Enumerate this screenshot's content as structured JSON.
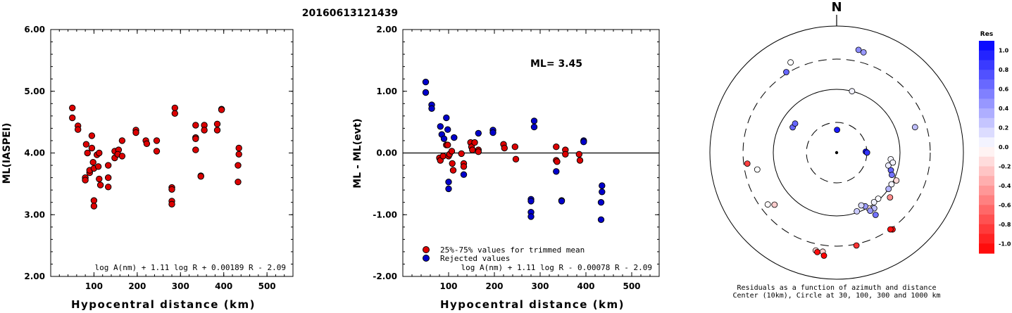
{
  "title": "20160613121439",
  "chart_data": [
    {
      "id": "ml-vs-distance",
      "type": "scatter",
      "xlabel": "Hypocentral distance (km)",
      "ylabel": "ML(IASPEI)",
      "xlim": [
        0,
        560
      ],
      "ylim": [
        2.0,
        6.0
      ],
      "xticks": [
        "100",
        "200",
        "300",
        "400",
        "500"
      ],
      "yticks": [
        "2.00",
        "3.00",
        "4.00",
        "5.00",
        "6.00"
      ],
      "formula": "log A(nm) + 1.11 log R + 0.00189 R - 2.09",
      "point_color": "#dd0000",
      "points": [
        [
          50,
          4.73
        ],
        [
          50,
          4.57
        ],
        [
          63,
          4.44
        ],
        [
          63,
          4.38
        ],
        [
          82,
          4.14
        ],
        [
          85,
          4.0
        ],
        [
          80,
          3.6
        ],
        [
          80,
          3.56
        ],
        [
          90,
          3.68
        ],
        [
          90,
          3.72
        ],
        [
          95,
          4.28
        ],
        [
          95,
          4.08
        ],
        [
          98,
          3.85
        ],
        [
          100,
          3.75
        ],
        [
          100,
          3.23
        ],
        [
          100,
          3.14
        ],
        [
          107,
          3.97
        ],
        [
          112,
          4.0
        ],
        [
          110,
          3.78
        ],
        [
          112,
          3.58
        ],
        [
          115,
          3.48
        ],
        [
          133,
          3.8
        ],
        [
          133,
          3.6
        ],
        [
          133,
          3.45
        ],
        [
          148,
          4.03
        ],
        [
          148,
          3.92
        ],
        [
          157,
          4.05
        ],
        [
          155,
          3.98
        ],
        [
          165,
          4.2
        ],
        [
          165,
          3.95
        ],
        [
          197,
          4.37
        ],
        [
          197,
          4.33
        ],
        [
          220,
          4.2
        ],
        [
          222,
          4.15
        ],
        [
          245,
          4.2
        ],
        [
          245,
          4.03
        ],
        [
          280,
          3.44
        ],
        [
          280,
          3.41
        ],
        [
          280,
          3.22
        ],
        [
          280,
          3.17
        ],
        [
          287,
          4.73
        ],
        [
          287,
          4.64
        ],
        [
          335,
          4.45
        ],
        [
          335,
          4.25
        ],
        [
          335,
          4.23
        ],
        [
          335,
          4.05
        ],
        [
          347,
          3.63
        ],
        [
          347,
          3.62
        ],
        [
          355,
          4.45
        ],
        [
          355,
          4.37
        ],
        [
          385,
          4.47
        ],
        [
          385,
          4.37
        ],
        [
          395,
          4.71
        ],
        [
          395,
          4.7
        ],
        [
          435,
          4.08
        ],
        [
          435,
          3.98
        ],
        [
          433,
          3.8
        ],
        [
          433,
          3.53
        ]
      ]
    },
    {
      "id": "residual-vs-distance",
      "type": "scatter",
      "xlabel": "Hypocentral distance (km)",
      "ylabel": "ML - ML(evt)",
      "xlim": [
        0,
        560
      ],
      "ylim": [
        -2.0,
        2.0
      ],
      "xticks": [
        "100",
        "200",
        "300",
        "400",
        "500"
      ],
      "yticks": [
        "-2.00",
        "-1.00",
        "0.00",
        "1.00",
        "2.00"
      ],
      "ml_label": "ML= 3.45",
      "formula": "log A(nm) + 1.11 log R - 0.00078 R - 2.09",
      "legend": {
        "position": "bottom-left",
        "items": [
          {
            "label": "25%-75% values for trimmed mean",
            "color": "#dd0000"
          },
          {
            "label": "Rejected values",
            "color": "#0000cc"
          }
        ]
      },
      "series": [
        {
          "color": "#dd0000",
          "points": [
            [
              80,
              -0.08
            ],
            [
              82,
              -0.12
            ],
            [
              88,
              -0.05
            ],
            [
              95,
              0.13
            ],
            [
              98,
              0.13
            ],
            [
              100,
              -0.05
            ],
            [
              102,
              -0.02
            ],
            [
              107,
              0.03
            ],
            [
              108,
              -0.17
            ],
            [
              110,
              -0.28
            ],
            [
              128,
              -0.01
            ],
            [
              133,
              -0.17
            ],
            [
              133,
              -0.22
            ],
            [
              148,
              0.17
            ],
            [
              150,
              0.1
            ],
            [
              152,
              0.05
            ],
            [
              157,
              0.17
            ],
            [
              165,
              0.05
            ],
            [
              165,
              0.02
            ],
            [
              220,
              0.14
            ],
            [
              222,
              0.08
            ],
            [
              245,
              0.1
            ],
            [
              247,
              -0.1
            ],
            [
              335,
              0.1
            ],
            [
              335,
              -0.12
            ],
            [
              337,
              -0.14
            ],
            [
              355,
              0.05
            ],
            [
              355,
              -0.02
            ],
            [
              385,
              -0.02
            ],
            [
              387,
              -0.12
            ]
          ]
        },
        {
          "color": "#0000cc",
          "points": [
            [
              50,
              1.15
            ],
            [
              50,
              0.98
            ],
            [
              63,
              0.78
            ],
            [
              63,
              0.72
            ],
            [
              82,
              0.43
            ],
            [
              85,
              0.3
            ],
            [
              90,
              0.23
            ],
            [
              95,
              0.57
            ],
            [
              98,
              0.38
            ],
            [
              100,
              -0.47
            ],
            [
              100,
              -0.58
            ],
            [
              112,
              0.25
            ],
            [
              133,
              -0.35
            ],
            [
              165,
              0.32
            ],
            [
              197,
              0.37
            ],
            [
              197,
              0.33
            ],
            [
              280,
              -0.75
            ],
            [
              280,
              -0.78
            ],
            [
              280,
              -0.96
            ],
            [
              280,
              -1.03
            ],
            [
              287,
              0.52
            ],
            [
              287,
              0.42
            ],
            [
              335,
              -0.3
            ],
            [
              347,
              -0.77
            ],
            [
              347,
              -0.78
            ],
            [
              395,
              0.2
            ],
            [
              395,
              0.18
            ],
            [
              435,
              -0.53
            ],
            [
              435,
              -0.63
            ],
            [
              433,
              -0.8
            ],
            [
              433,
              -1.08
            ]
          ]
        }
      ]
    },
    {
      "id": "azimuth-distance-residuals",
      "type": "scatter",
      "north_label": "N",
      "caption_line1": "Residuals as a function of azimuth and distance",
      "caption_line2": "Center (10km), Circle at 30, 100, 300 and 1000 km",
      "colorbar": {
        "title": "Res",
        "ticks": [
          "1.0",
          "0.8",
          "0.6",
          "0.4",
          "0.2",
          "0.0",
          "-0.2",
          "-0.4",
          "-0.6",
          "-0.8",
          "-1.0"
        ],
        "range": [
          -1.0,
          1.0
        ]
      },
      "points": [
        {
          "az": 1,
          "dist": 18,
          "res": 0.9
        },
        {
          "az": 104,
          "dist": 42,
          "res": 0.08
        },
        {
          "az": 97,
          "dist": 43,
          "res": 0.04
        },
        {
          "az": 100,
          "dist": 45,
          "res": 0.05
        },
        {
          "az": 108,
          "dist": 45,
          "res": 0.6
        },
        {
          "az": 112,
          "dist": 47,
          "res": 0.55
        },
        {
          "az": 115,
          "dist": 52,
          "res": -0.15
        },
        {
          "az": 120,
          "dist": 50,
          "res": 0.05
        },
        {
          "az": 130,
          "dist": 55,
          "res": -0.45
        },
        {
          "az": 125,
          "dist": 50,
          "res": 0.3
        },
        {
          "az": 138,
          "dist": 49,
          "res": 0.02
        },
        {
          "az": 143,
          "dist": 49,
          "res": 0.05
        },
        {
          "az": 146,
          "dist": 53,
          "res": 0.25
        },
        {
          "az": 150,
          "dist": 51,
          "res": -0.1
        },
        {
          "az": 150,
          "dist": 53,
          "res": 0.4
        },
        {
          "az": 152,
          "dist": 48,
          "res": 0.4
        },
        {
          "az": 155,
          "dist": 46,
          "res": 0.15
        },
        {
          "az": 148,
          "dist": 58,
          "res": 0.55
        },
        {
          "az": 161,
          "dist": 49,
          "res": 0.2
        },
        {
          "az": 168,
          "dist": 75,
          "res": -0.8
        },
        {
          "az": 188,
          "dist": 79,
          "res": -0.2
        },
        {
          "az": 192,
          "dist": 79,
          "res": -0.15
        },
        {
          "az": 191,
          "dist": 80,
          "res": -0.95
        },
        {
          "az": 187,
          "dist": 82,
          "res": -1.0
        },
        {
          "az": 144,
          "dist": 75,
          "res": -0.95
        },
        {
          "az": 145,
          "dist": 74,
          "res": -0.95
        },
        {
          "az": 230,
          "dist": 64,
          "res": -0.2
        },
        {
          "az": 233,
          "dist": 68,
          "res": -0.02
        },
        {
          "az": 258,
          "dist": 64,
          "res": 0.0
        },
        {
          "az": 263,
          "dist": 71,
          "res": -0.75
        },
        {
          "az": 300,
          "dist": 40,
          "res": 0.6
        },
        {
          "az": 305,
          "dist": 40,
          "res": 0.6
        },
        {
          "az": 328,
          "dist": 75,
          "res": 0.6
        },
        {
          "az": 333,
          "dist": 80,
          "res": 0.0
        },
        {
          "az": 14,
          "dist": 50,
          "res": 0.05
        },
        {
          "az": 12,
          "dist": 83,
          "res": 0.45
        },
        {
          "az": 15,
          "dist": 82,
          "res": 0.4
        },
        {
          "az": 72,
          "dist": 65,
          "res": 0.25
        },
        {
          "az": 88,
          "dist": 23,
          "res": 1.0
        },
        {
          "az": 90,
          "dist": 24,
          "res": 0.8
        }
      ]
    }
  ]
}
